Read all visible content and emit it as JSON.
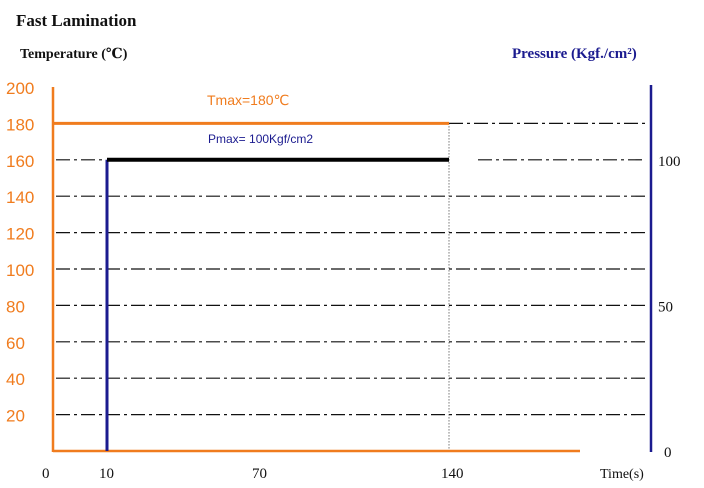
{
  "colors": {
    "temperature": "#f07c1e",
    "pressure": "#1b1b8f",
    "pmax_line": "#000000",
    "grid": "#111111",
    "text": "#111111"
  },
  "chart_data": {
    "type": "line",
    "title": "Fast Lamination",
    "left_axis_label": "Temperature (℃)",
    "right_axis_label": "Pressure (Kgf./cm²)",
    "x_axis_label": "Time(s)",
    "x_ticks": [
      0,
      10,
      70,
      140
    ],
    "y_left_ticks": [
      20,
      40,
      60,
      80,
      100,
      120,
      140,
      160,
      180,
      200
    ],
    "y_right_ticks": [
      0,
      50,
      100
    ],
    "y_left_range": [
      0,
      200
    ],
    "grid": true,
    "series": [
      {
        "name": "Temperature",
        "label": "Tmax=180℃",
        "points": [
          [
            0,
            180
          ],
          [
            140,
            180
          ]
        ]
      },
      {
        "name": "Pressure",
        "label": "Pmax= 100Kgf/cm2",
        "points": [
          [
            10,
            0
          ],
          [
            10,
            160
          ],
          [
            140,
            160
          ]
        ]
      }
    ]
  }
}
